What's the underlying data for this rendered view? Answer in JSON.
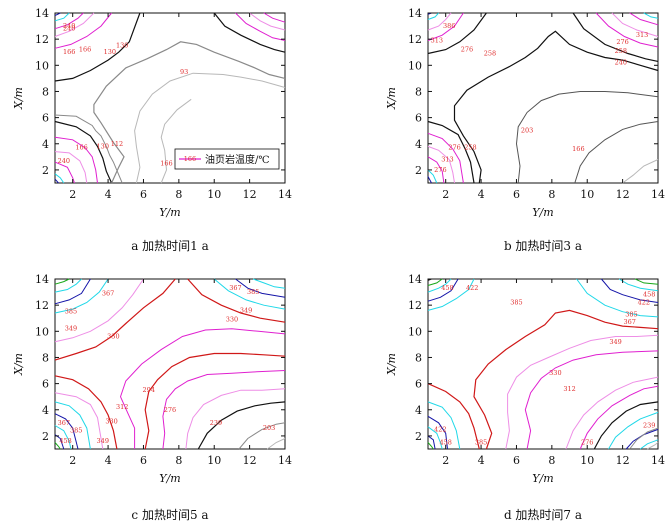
{
  "chart_data": [
    {
      "type": "contour",
      "caption": "a 加热时间1 a",
      "xlabel": "Y/m",
      "ylabel": "X/m",
      "xticks": [
        "2",
        "4",
        "6",
        "8",
        "10",
        "12",
        "14"
      ],
      "yticks": [
        "2",
        "4",
        "6",
        "8",
        "10",
        "12",
        "14"
      ],
      "xlim": [
        1,
        14
      ],
      "ylim": [
        1,
        14
      ],
      "legend": {
        "sample": "166",
        "text": "油页岩温度/℃"
      },
      "labels": [
        {
          "text": "240",
          "y": 1.8,
          "x": 13.0
        },
        {
          "text": "240",
          "y": 1.8,
          "x": 12.8
        },
        {
          "text": "166",
          "y": 1.8,
          "x": 11.0
        },
        {
          "text": "166",
          "y": 2.7,
          "x": 11.2
        },
        {
          "text": "130",
          "y": 4.8,
          "x": 11.5
        },
        {
          "text": "130",
          "y": 4.1,
          "x": 11.0
        },
        {
          "text": "93",
          "y": 8.3,
          "x": 9.5
        },
        {
          "text": "112",
          "y": 4.5,
          "x": 4.0
        },
        {
          "text": "130",
          "y": 3.7,
          "x": 3.8
        },
        {
          "text": "166",
          "y": 2.5,
          "x": 3.7
        },
        {
          "text": "240",
          "y": 1.5,
          "x": 2.7
        },
        {
          "text": "166",
          "y": 7.3,
          "x": 2.5
        }
      ]
    },
    {
      "type": "contour",
      "caption": "b 加热时间3 a",
      "xlabel": "Y/m",
      "ylabel": "X/m",
      "xticks": [
        "2",
        "4",
        "6",
        "8",
        "10",
        "12",
        "14"
      ],
      "yticks": [
        "2",
        "4",
        "6",
        "8",
        "10",
        "12",
        "14"
      ],
      "xlim": [
        1,
        14
      ],
      "ylim": [
        1,
        14
      ],
      "labels": [
        {
          "text": "386",
          "y": 2.2,
          "x": 13.0
        },
        {
          "text": "313",
          "y": 1.5,
          "x": 11.9
        },
        {
          "text": "276",
          "y": 3.2,
          "x": 11.2
        },
        {
          "text": "258",
          "y": 4.5,
          "x": 10.9
        },
        {
          "text": "313",
          "y": 13.1,
          "x": 12.3
        },
        {
          "text": "276",
          "y": 12.0,
          "x": 11.8
        },
        {
          "text": "258",
          "y": 11.9,
          "x": 11.1
        },
        {
          "text": "240",
          "y": 11.9,
          "x": 10.2
        },
        {
          "text": "203",
          "y": 6.6,
          "x": 5.0
        },
        {
          "text": "166",
          "y": 9.5,
          "x": 3.6
        },
        {
          "text": "276",
          "y": 2.5,
          "x": 3.7
        },
        {
          "text": "258",
          "y": 3.4,
          "x": 3.7
        },
        {
          "text": "313",
          "y": 2.1,
          "x": 2.8
        },
        {
          "text": "276",
          "y": 1.7,
          "x": 2.0
        }
      ]
    },
    {
      "type": "contour",
      "caption": "c 加热时间5 a",
      "xlabel": "Y/m",
      "ylabel": "X/m",
      "xticks": [
        "2",
        "4",
        "6",
        "8",
        "10",
        "12",
        "14"
      ],
      "yticks": [
        "2",
        "4",
        "6",
        "8",
        "10",
        "12",
        "14"
      ],
      "xlim": [
        1,
        14
      ],
      "ylim": [
        1,
        14
      ],
      "labels": [
        {
          "text": "367",
          "y": 4.0,
          "x": 12.9
        },
        {
          "text": "367",
          "y": 11.2,
          "x": 13.3
        },
        {
          "text": "385",
          "y": 12.2,
          "x": 13.0
        },
        {
          "text": "349",
          "y": 11.8,
          "x": 11.6
        },
        {
          "text": "330",
          "y": 11.0,
          "x": 10.9
        },
        {
          "text": "385",
          "y": 1.9,
          "x": 11.5
        },
        {
          "text": "349",
          "y": 1.9,
          "x": 10.2
        },
        {
          "text": "330",
          "y": 4.3,
          "x": 9.6
        },
        {
          "text": "294",
          "y": 6.3,
          "x": 5.5
        },
        {
          "text": "276",
          "y": 7.5,
          "x": 4.0
        },
        {
          "text": "312",
          "y": 4.8,
          "x": 4.2
        },
        {
          "text": "330",
          "y": 4.2,
          "x": 3.1
        },
        {
          "text": "239",
          "y": 10.1,
          "x": 3.0
        },
        {
          "text": "203",
          "y": 13.1,
          "x": 2.6
        },
        {
          "text": "367",
          "y": 1.5,
          "x": 3.0
        },
        {
          "text": "385",
          "y": 2.2,
          "x": 2.4
        },
        {
          "text": "349",
          "y": 3.7,
          "x": 1.6
        },
        {
          "text": "458",
          "y": 1.6,
          "x": 1.6
        }
      ]
    },
    {
      "type": "contour",
      "caption": "d 加热时间7 a",
      "xlabel": "Y/m",
      "ylabel": "X/m",
      "xticks": [
        "2",
        "4",
        "6",
        "8",
        "10",
        "12",
        "14"
      ],
      "yticks": [
        "2",
        "4",
        "6",
        "8",
        "10",
        "12",
        "14"
      ],
      "xlim": [
        1,
        14
      ],
      "ylim": [
        1,
        14
      ],
      "labels": [
        {
          "text": "458",
          "y": 2.1,
          "x": 13.3
        },
        {
          "text": "422",
          "y": 3.5,
          "x": 13.3
        },
        {
          "text": "385",
          "y": 6.0,
          "x": 12.2
        },
        {
          "text": "458",
          "y": 13.5,
          "x": 12.8
        },
        {
          "text": "422",
          "y": 13.2,
          "x": 12.2
        },
        {
          "text": "385",
          "y": 12.5,
          "x": 11.3
        },
        {
          "text": "367",
          "y": 12.4,
          "x": 10.7
        },
        {
          "text": "349",
          "y": 11.6,
          "x": 9.2
        },
        {
          "text": "330",
          "y": 8.2,
          "x": 6.8
        },
        {
          "text": "312",
          "y": 9.0,
          "x": 5.6
        },
        {
          "text": "276",
          "y": 10.0,
          "x": 1.5
        },
        {
          "text": "239",
          "y": 13.5,
          "x": 2.8
        },
        {
          "text": "422",
          "y": 1.7,
          "x": 2.5
        },
        {
          "text": "458",
          "y": 2.0,
          "x": 1.5
        },
        {
          "text": "385",
          "y": 4.0,
          "x": 1.5
        }
      ]
    }
  ]
}
